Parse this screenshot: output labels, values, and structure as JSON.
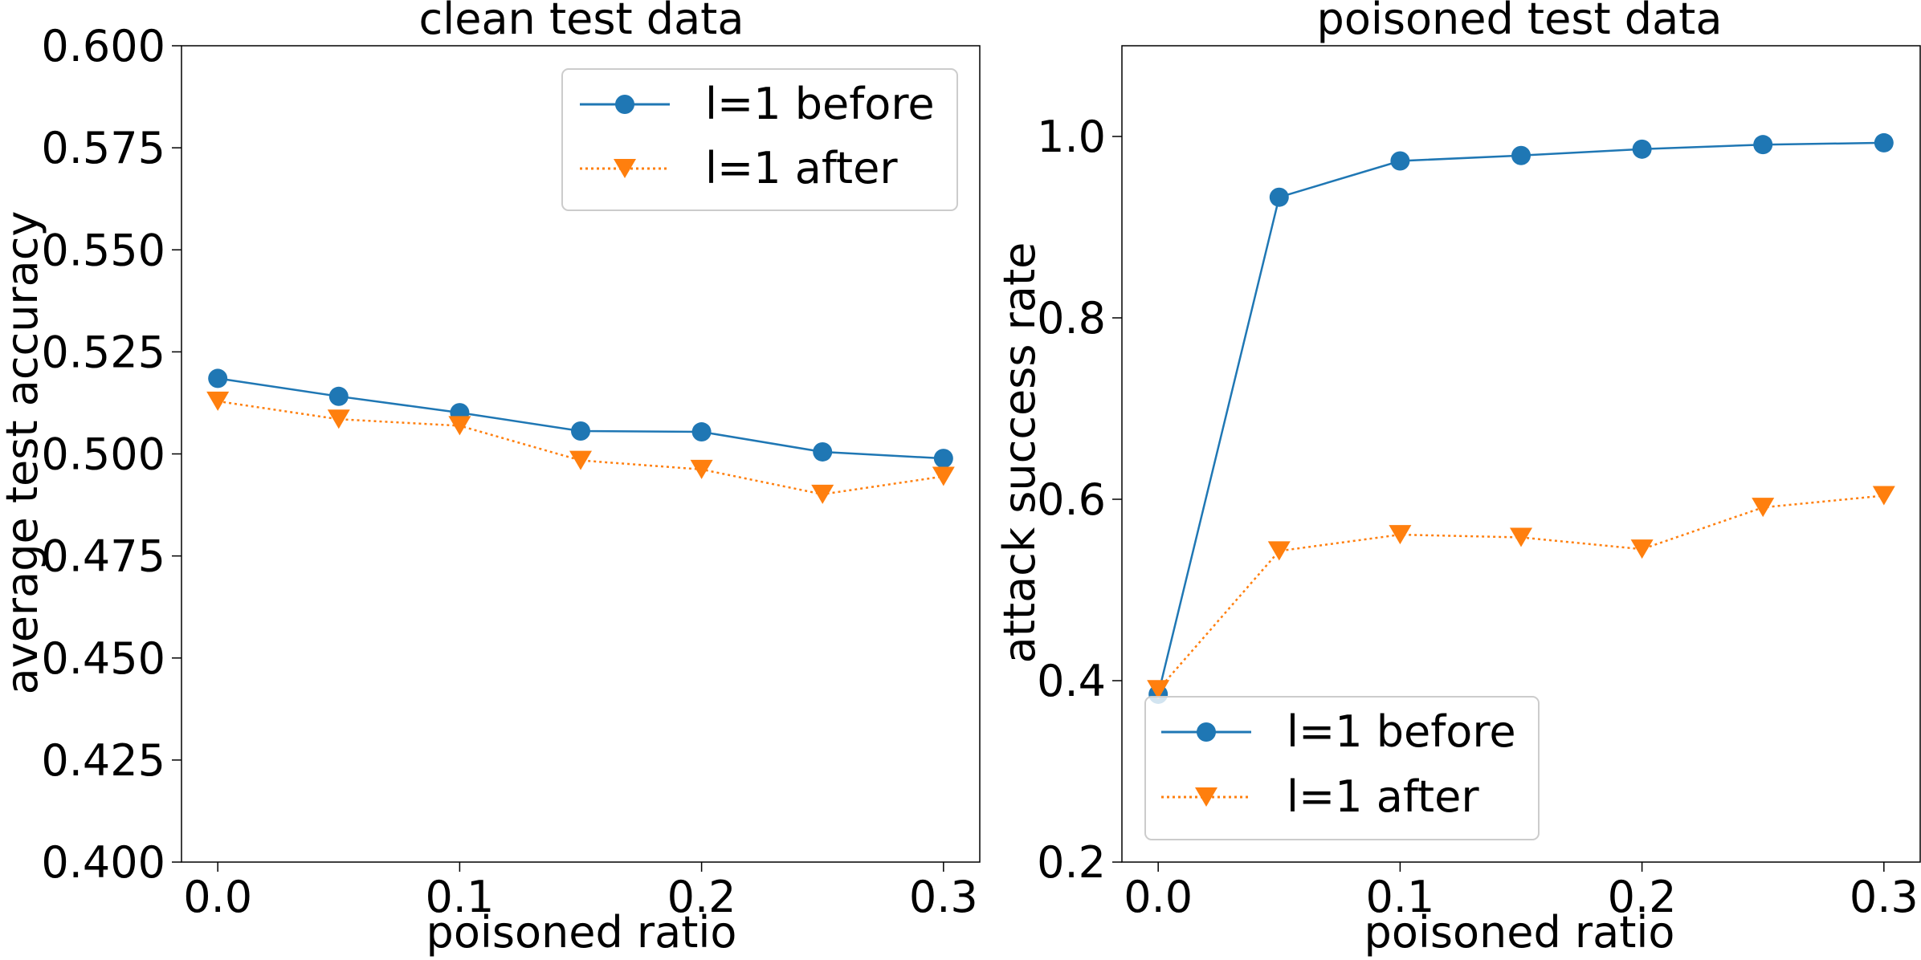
{
  "chart_data": [
    {
      "type": "line",
      "title": "clean test data",
      "xlabel": "poisoned ratio",
      "ylabel": "average test accuracy",
      "x": [
        0.0,
        0.05,
        0.1,
        0.15,
        0.2,
        0.25,
        0.3
      ],
      "xlim": [
        -0.015,
        0.315
      ],
      "ylim": [
        0.4,
        0.6
      ],
      "xticks": [
        0.0,
        0.1,
        0.2,
        0.3
      ],
      "xtick_labels": [
        "0.0",
        "0.1",
        "0.2",
        "0.3"
      ],
      "yticks": [
        0.4,
        0.425,
        0.45,
        0.475,
        0.5,
        0.525,
        0.55,
        0.575,
        0.6
      ],
      "ytick_labels": [
        "0.400",
        "0.425",
        "0.450",
        "0.475",
        "0.500",
        "0.525",
        "0.550",
        "0.575",
        "0.600"
      ],
      "grid": false,
      "legend_position": "top-right",
      "series": [
        {
          "name": "l=1 before",
          "values": [
            0.5185,
            0.5141,
            0.5101,
            0.5056,
            0.5054,
            0.5005,
            0.4989
          ],
          "color": "#1f77b4",
          "marker": "circle",
          "linestyle": "solid"
        },
        {
          "name": "l=1 after",
          "values": [
            0.5129,
            0.5085,
            0.5069,
            0.4984,
            0.4962,
            0.4901,
            0.4945
          ],
          "color": "#ff7f0e",
          "marker": "triangle-down",
          "linestyle": "dotted"
        }
      ]
    },
    {
      "type": "line",
      "title": "poisoned test data",
      "xlabel": "poisoned ratio",
      "ylabel": "attack success rate",
      "x": [
        0.0,
        0.05,
        0.1,
        0.15,
        0.2,
        0.25,
        0.3
      ],
      "xlim": [
        -0.015,
        0.315
      ],
      "ylim": [
        0.2,
        1.1
      ],
      "xticks": [
        0.0,
        0.1,
        0.2,
        0.3
      ],
      "xtick_labels": [
        "0.0",
        "0.1",
        "0.2",
        "0.3"
      ],
      "yticks": [
        0.2,
        0.4,
        0.6,
        0.8,
        1.0
      ],
      "ytick_labels": [
        "0.2",
        "0.4",
        "0.6",
        "0.8",
        "1.0"
      ],
      "grid": false,
      "legend_position": "bottom-left",
      "series": [
        {
          "name": "l=1 before",
          "values": [
            0.385,
            0.933,
            0.973,
            0.979,
            0.986,
            0.991,
            0.993
          ],
          "color": "#1f77b4",
          "marker": "circle",
          "linestyle": "solid"
        },
        {
          "name": "l=1 after",
          "values": [
            0.39,
            0.543,
            0.561,
            0.558,
            0.545,
            0.591,
            0.604
          ],
          "color": "#ff7f0e",
          "marker": "triangle-down",
          "linestyle": "dotted"
        }
      ]
    }
  ]
}
